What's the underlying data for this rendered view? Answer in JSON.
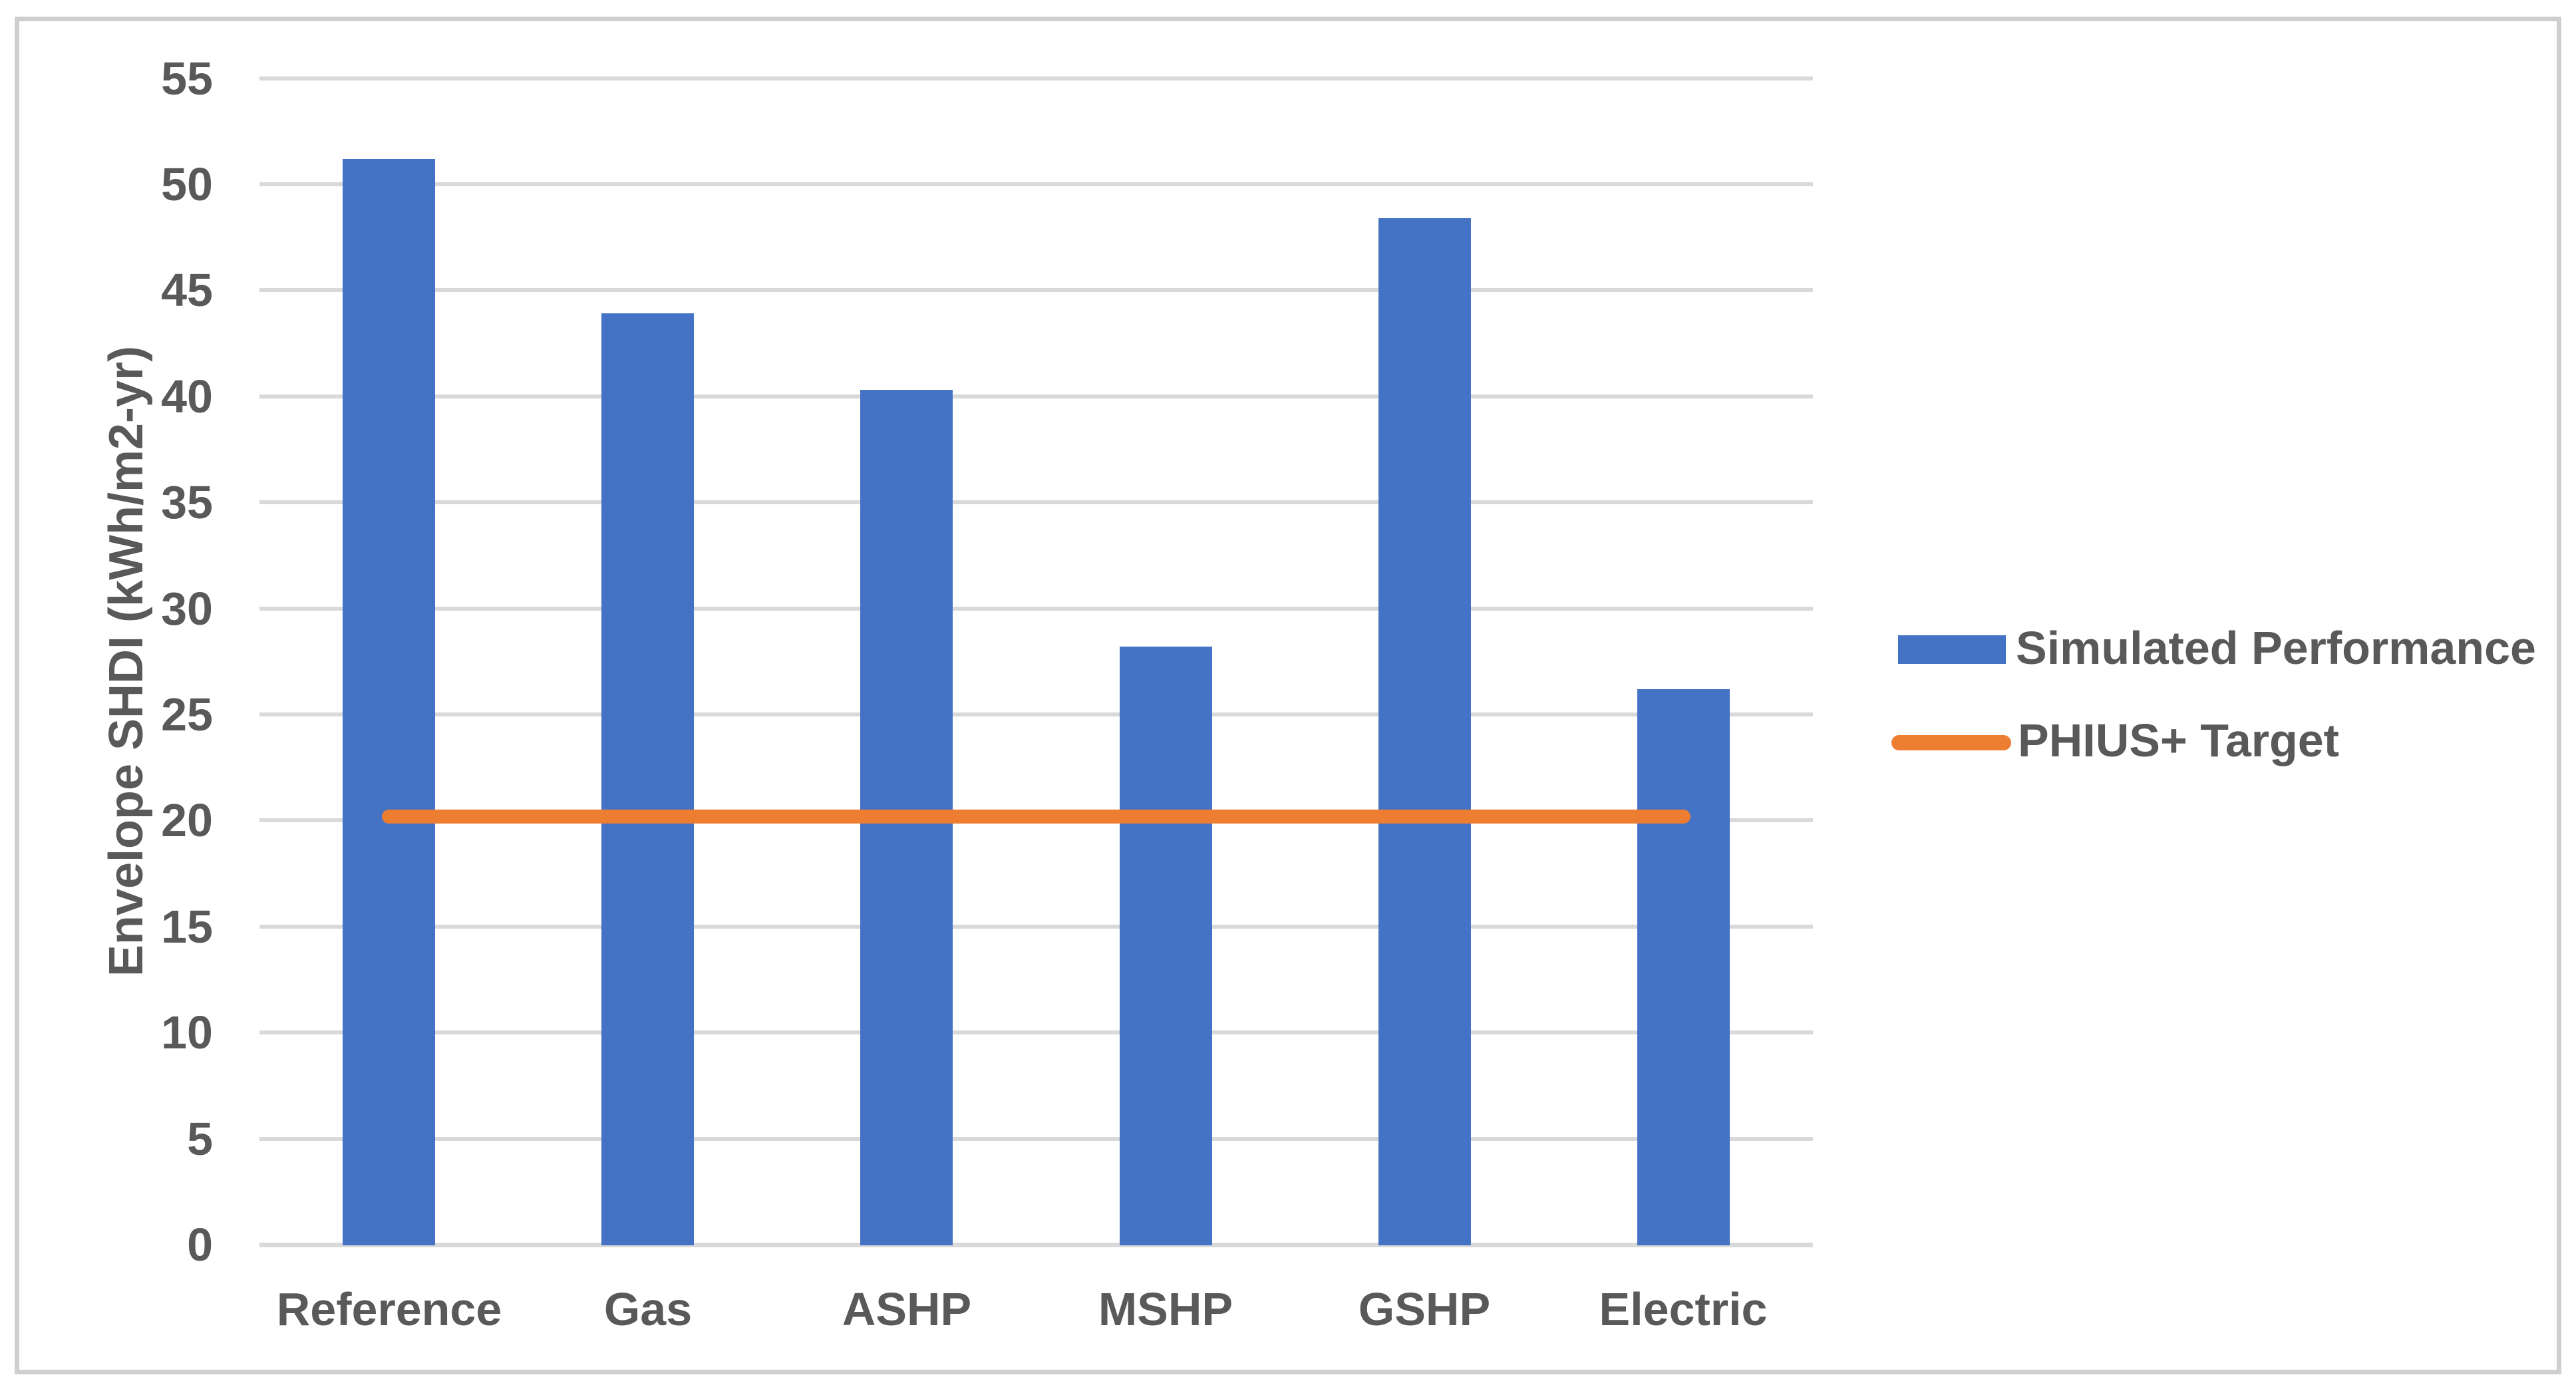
{
  "chart_data": {
    "type": "bar",
    "title": "",
    "categories": [
      "Reference",
      "Gas",
      "ASHP",
      "MSHP",
      "GSHP",
      "Electric"
    ],
    "series": [
      {
        "name": "Simulated Performance",
        "type": "bar",
        "color": "#4472C4",
        "values": [
          51.2,
          43.9,
          40.3,
          28.2,
          48.4,
          26.2
        ]
      },
      {
        "name": "PHIUS+ Target",
        "type": "line",
        "color": "#ED7D31",
        "values": [
          20.2,
          20.2,
          20.2,
          20.2,
          20.2,
          20.2
        ]
      }
    ],
    "xlabel": "",
    "ylabel": "Envelope SHDI (kWh/m2-yr)",
    "ylim": [
      0,
      55
    ],
    "ytick_step": 5,
    "ytick_labels": [
      "0",
      "5",
      "10",
      "15",
      "20",
      "25",
      "30",
      "35",
      "40",
      "45",
      "50",
      "55"
    ],
    "grid": true,
    "legend_position": "right"
  },
  "colors": {
    "bar": "#4472C4",
    "target_line": "#ED7D31",
    "gridline": "#D9D9D9",
    "axis_line": "#D9D9D9",
    "text": "#595959",
    "chart_border": "#D0CECE",
    "background": "#FFFFFF"
  }
}
